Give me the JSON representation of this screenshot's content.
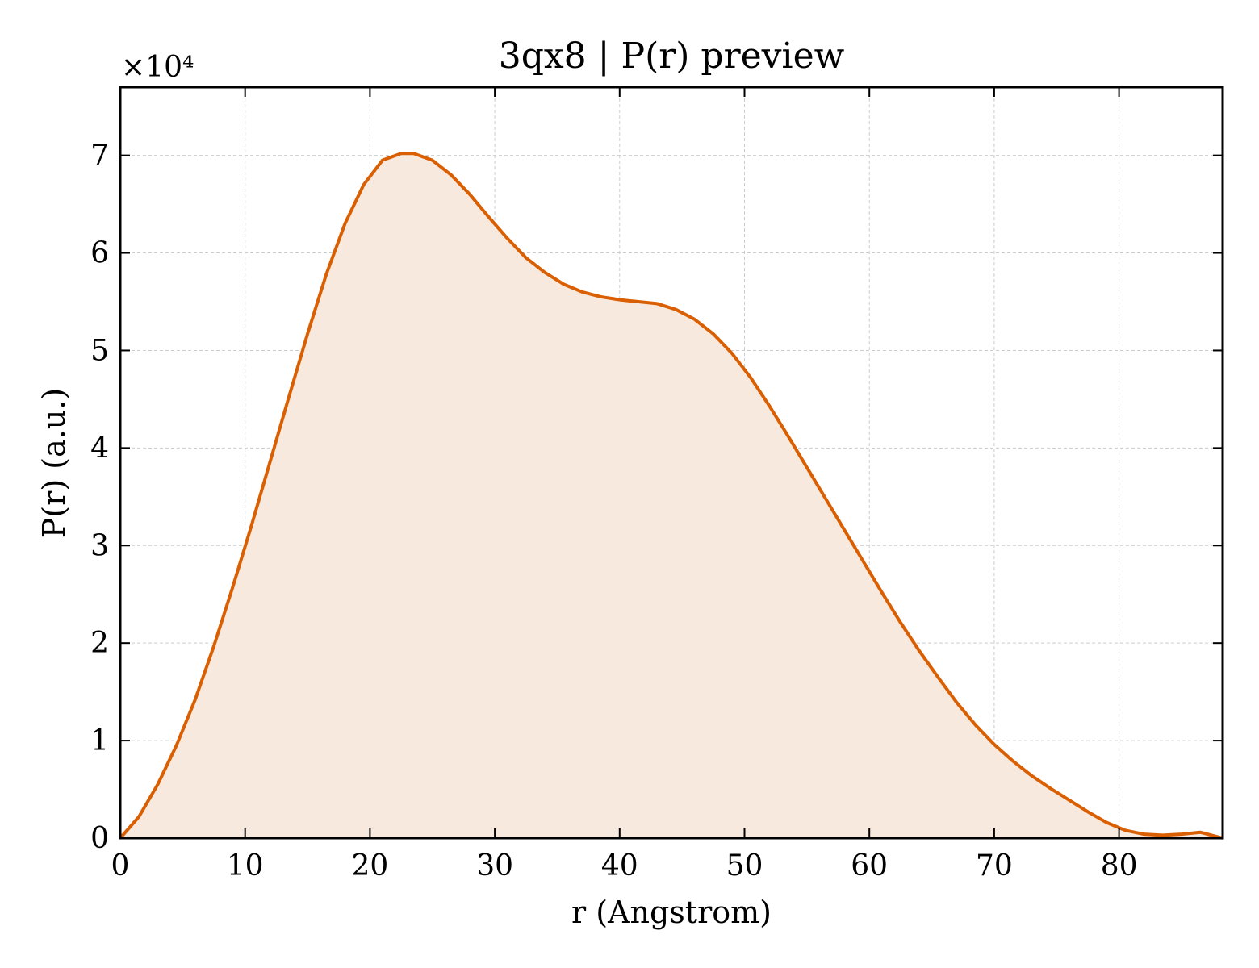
{
  "chart_data": {
    "type": "area",
    "title": "3qx8 | P(r) preview",
    "xlabel": "r (Angstrom)",
    "ylabel": "P(r) (a.u.)",
    "y_multiplier": "×10⁴",
    "xlim": [
      0,
      88.3
    ],
    "ylim": [
      0,
      7.7
    ],
    "y_scale_factor": 10000,
    "x_ticks": [
      0,
      10,
      20,
      30,
      40,
      50,
      60,
      70,
      80
    ],
    "y_ticks": [
      0,
      1,
      2,
      3,
      4,
      5,
      6,
      7
    ],
    "grid": true,
    "line_color": "#d95f02",
    "fill_color": "#f8e9de",
    "series": [
      {
        "x": [
          0,
          1.5,
          3,
          4.5,
          6,
          7.5,
          9,
          10.5,
          12,
          13.5,
          15,
          16.5,
          18,
          19.5,
          21,
          22.5,
          23.5,
          25,
          26.5,
          28,
          29.5,
          31,
          32.5,
          34,
          35.5,
          37,
          38.5,
          40,
          41.5,
          43,
          44.5,
          46,
          47.5,
          49,
          50.5,
          52,
          53.5,
          55,
          56.5,
          58,
          59.5,
          61,
          62.5,
          64,
          65.5,
          67,
          68.5,
          70,
          71.5,
          73,
          74.5,
          76,
          77.5,
          79,
          80.5,
          82,
          83.5,
          85,
          86.5,
          88.3
        ],
        "y": [
          0,
          0.22,
          0.55,
          0.95,
          1.42,
          1.97,
          2.57,
          3.2,
          3.86,
          4.52,
          5.17,
          5.78,
          6.3,
          6.7,
          6.95,
          7.02,
          7.02,
          6.95,
          6.8,
          6.6,
          6.37,
          6.15,
          5.95,
          5.8,
          5.68,
          5.6,
          5.55,
          5.52,
          5.5,
          5.48,
          5.42,
          5.32,
          5.17,
          4.97,
          4.72,
          4.43,
          4.12,
          3.8,
          3.48,
          3.16,
          2.84,
          2.52,
          2.21,
          1.92,
          1.65,
          1.39,
          1.16,
          0.96,
          0.79,
          0.64,
          0.51,
          0.39,
          0.27,
          0.16,
          0.08,
          0.04,
          0.03,
          0.04,
          0.06,
          0
        ]
      }
    ]
  }
}
